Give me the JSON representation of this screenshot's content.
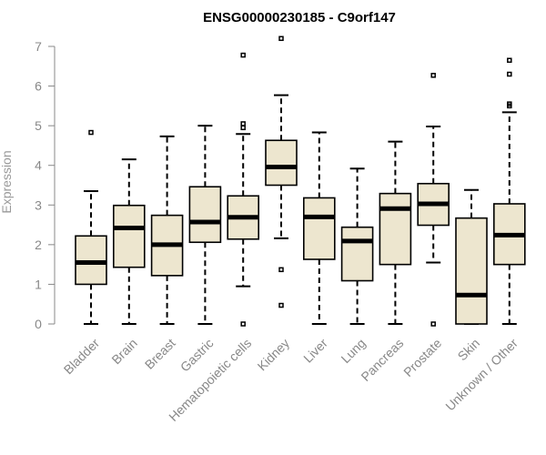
{
  "chart_data": {
    "type": "boxplot",
    "title": "ENSG00000230185 - C9orf147",
    "xlabel": "",
    "ylabel": "Expression",
    "ylim": [
      0,
      7.3
    ],
    "yticks": [
      0,
      1,
      2,
      3,
      4,
      5,
      6,
      7
    ],
    "box_color": "#ede6cf",
    "categories": [
      "Bladder",
      "Brain",
      "Breast",
      "Gastric",
      "Hematopoietic cells",
      "Kidney",
      "Liver",
      "Lung",
      "Pancreas",
      "Prostate",
      "Skin",
      "Unknown / Other"
    ],
    "boxes": [
      {
        "min": 0,
        "q1": 1.0,
        "median": 1.55,
        "q3": 2.22,
        "max": 3.35,
        "outliers": [
          4.83
        ]
      },
      {
        "min": 0,
        "q1": 1.43,
        "median": 2.42,
        "q3": 2.99,
        "max": 4.15,
        "outliers": []
      },
      {
        "min": 0,
        "q1": 1.22,
        "median": 2.0,
        "q3": 2.74,
        "max": 4.73,
        "outliers": []
      },
      {
        "min": 0,
        "q1": 2.06,
        "median": 2.57,
        "q3": 3.46,
        "max": 5.0,
        "outliers": []
      },
      {
        "min": 0.95,
        "q1": 2.14,
        "median": 2.69,
        "q3": 3.23,
        "max": 4.79,
        "outliers": [
          0,
          4.95,
          5.05,
          6.78
        ]
      },
      {
        "min": 2.16,
        "q1": 3.5,
        "median": 3.96,
        "q3": 4.63,
        "max": 5.77,
        "outliers": [
          0.47,
          1.37,
          7.2
        ]
      },
      {
        "min": 0,
        "q1": 1.63,
        "median": 2.7,
        "q3": 3.18,
        "max": 4.83,
        "outliers": []
      },
      {
        "min": 0,
        "q1": 1.09,
        "median": 2.09,
        "q3": 2.44,
        "max": 3.92,
        "outliers": []
      },
      {
        "min": 0,
        "q1": 1.5,
        "median": 2.91,
        "q3": 3.29,
        "max": 4.6,
        "outliers": []
      },
      {
        "min": 1.55,
        "q1": 2.49,
        "median": 3.03,
        "q3": 3.54,
        "max": 4.98,
        "outliers": [
          0,
          6.27
        ]
      },
      {
        "min": 0,
        "q1": 0,
        "median": 0.73,
        "q3": 2.67,
        "max": 3.38,
        "outliers": []
      },
      {
        "min": 0,
        "q1": 1.5,
        "median": 2.24,
        "q3": 3.03,
        "max": 5.34,
        "outliers": [
          5.5,
          5.55,
          6.3,
          6.65
        ]
      }
    ]
  }
}
